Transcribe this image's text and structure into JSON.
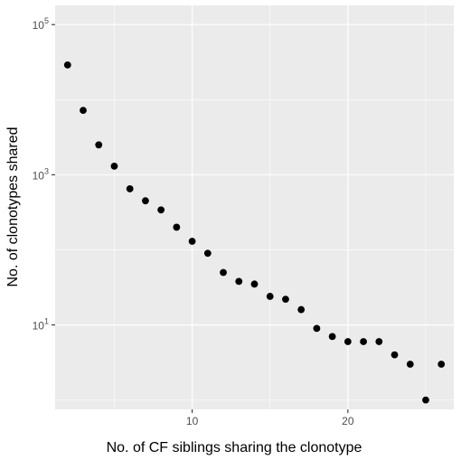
{
  "chart_data": {
    "type": "scatter",
    "title": "",
    "xlabel": "No. of CF siblings sharing the clonotype",
    "ylabel": "No. of clonotypes shared",
    "x_scale": "linear",
    "y_scale": "log10",
    "xlim": [
      1.2,
      26.8
    ],
    "ylim": [
      0.75,
      180000
    ],
    "x_ticks": [
      {
        "value": 10,
        "label": "10"
      },
      {
        "value": 20,
        "label": "20"
      }
    ],
    "x_minor_ticks": [
      5,
      15,
      25
    ],
    "y_ticks": [
      {
        "value": 10,
        "base": "10",
        "exp": "1"
      },
      {
        "value": 1000,
        "base": "10",
        "exp": "3"
      },
      {
        "value": 100000,
        "base": "10",
        "exp": "5"
      }
    ],
    "y_minor_ticks": [
      1,
      100,
      10000
    ],
    "grid": true,
    "background": "#ebebeb",
    "grid_color": "#ffffff",
    "point_color": "#000000",
    "points": [
      {
        "x": 2,
        "y": 29000
      },
      {
        "x": 3,
        "y": 7200
      },
      {
        "x": 4,
        "y": 2500
      },
      {
        "x": 5,
        "y": 1300
      },
      {
        "x": 6,
        "y": 650
      },
      {
        "x": 7,
        "y": 450
      },
      {
        "x": 8,
        "y": 340
      },
      {
        "x": 9,
        "y": 200
      },
      {
        "x": 10,
        "y": 130
      },
      {
        "x": 11,
        "y": 90
      },
      {
        "x": 12,
        "y": 50
      },
      {
        "x": 13,
        "y": 38
      },
      {
        "x": 14,
        "y": 35
      },
      {
        "x": 15,
        "y": 24
      },
      {
        "x": 16,
        "y": 22
      },
      {
        "x": 17,
        "y": 16
      },
      {
        "x": 18,
        "y": 9
      },
      {
        "x": 19,
        "y": 7
      },
      {
        "x": 20,
        "y": 6
      },
      {
        "x": 21,
        "y": 6
      },
      {
        "x": 22,
        "y": 6
      },
      {
        "x": 23,
        "y": 4
      },
      {
        "x": 24,
        "y": 3
      },
      {
        "x": 25,
        "y": 1
      },
      {
        "x": 26,
        "y": 3
      }
    ]
  }
}
